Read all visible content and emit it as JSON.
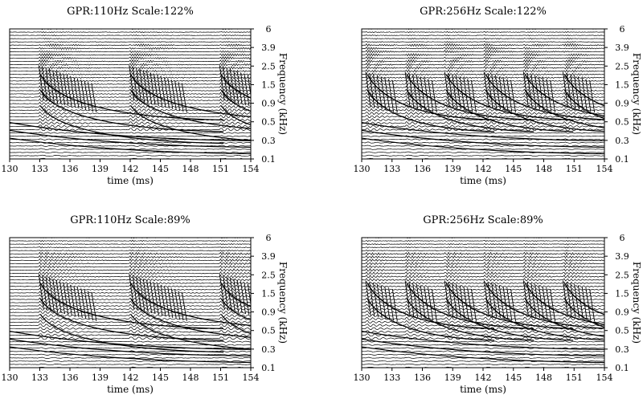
{
  "chart_data": [
    {
      "type": "spectrogram",
      "title": "GPR:110Hz Scale:122%",
      "xlabel": "time (ms)",
      "ylabel": "Frequency (kHz)",
      "xlim": [
        130,
        154
      ],
      "xticks": [
        "130",
        "133",
        "136",
        "139",
        "142",
        "145",
        "148",
        "151",
        "154"
      ],
      "yticks": [
        "0.1",
        "0.3",
        "0.5",
        "0.9",
        "1.5",
        "2.5",
        "3.9",
        "6"
      ],
      "ylim_khz": [
        0.1,
        6
      ],
      "glottal_pulse_rate_hz": 110,
      "scale_percent": 122,
      "pulse_onsets_ms": [
        132.9,
        141.9,
        150.9
      ],
      "grid": false,
      "legend": "none"
    },
    {
      "type": "spectrogram",
      "title": "GPR:256Hz Scale:122%",
      "xlabel": "time (ms)",
      "ylabel": "Frequency (kHz)",
      "xlim": [
        130,
        154
      ],
      "xticks": [
        "130",
        "133",
        "136",
        "139",
        "142",
        "145",
        "148",
        "151",
        "154"
      ],
      "yticks": [
        "0.1",
        "0.3",
        "0.5",
        "0.9",
        "1.5",
        "2.5",
        "3.9",
        "6"
      ],
      "ylim_khz": [
        0.1,
        6
      ],
      "glottal_pulse_rate_hz": 256,
      "scale_percent": 122,
      "pulse_onsets_ms": [
        130.4,
        134.3,
        138.2,
        142.1,
        146.0,
        149.9
      ],
      "grid": false,
      "legend": "none"
    },
    {
      "type": "spectrogram",
      "title": "GPR:110Hz Scale:89%",
      "xlabel": "time (ms)",
      "ylabel": "Frequency (kHz)",
      "xlim": [
        130,
        154
      ],
      "xticks": [
        "130",
        "133",
        "136",
        "139",
        "142",
        "145",
        "148",
        "151",
        "154"
      ],
      "yticks": [
        "0.1",
        "0.3",
        "0.5",
        "0.9",
        "1.5",
        "2.5",
        "3.9",
        "6"
      ],
      "ylim_khz": [
        0.1,
        6
      ],
      "glottal_pulse_rate_hz": 110,
      "scale_percent": 89,
      "pulse_onsets_ms": [
        132.9,
        141.9,
        150.9
      ],
      "grid": false,
      "legend": "none"
    },
    {
      "type": "spectrogram",
      "title": "GPR:256Hz Scale:89%",
      "xlabel": "time (ms)",
      "ylabel": "Frequency (kHz)",
      "xlim": [
        130,
        154
      ],
      "xticks": [
        "130",
        "133",
        "136",
        "139",
        "142",
        "145",
        "148",
        "151",
        "154"
      ],
      "yticks": [
        "0.1",
        "0.3",
        "0.5",
        "0.9",
        "1.5",
        "2.5",
        "3.9",
        "6"
      ],
      "ylim_khz": [
        0.1,
        6
      ],
      "glottal_pulse_rate_hz": 256,
      "scale_percent": 89,
      "pulse_onsets_ms": [
        130.4,
        134.3,
        138.2,
        142.1,
        146.0,
        149.9
      ],
      "grid": false,
      "legend": "none"
    }
  ]
}
